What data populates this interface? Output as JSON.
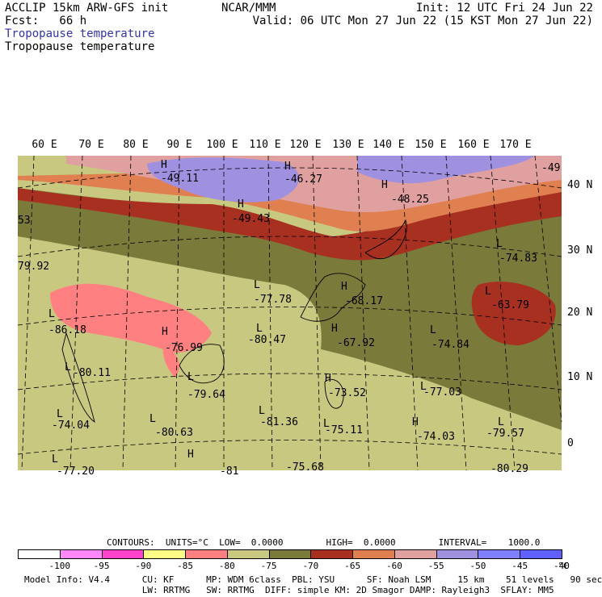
{
  "header": {
    "model": "ACCLIP 15km ARW-GFS init",
    "org": "NCAR/MMM",
    "init": "Init: 12 UTC Fri 24 Jun 22",
    "fcst": "Fcst:   66 h",
    "valid": "Valid: 06 UTC Mon 27 Jun 22 (15 KST Mon 27 Jun 22)",
    "field1": "Tropopause temperature",
    "field2": "Tropopause temperature"
  },
  "lon_labels": [
    "60 E",
    "70 E",
    "80 E",
    "90 E",
    "100 E",
    "110 E",
    "120 E",
    "130 E",
    "140 E",
    "150 E",
    "160 E",
    "170 E"
  ],
  "lat_labels": [
    "40 N",
    "30 N",
    "20 N",
    "10 N",
    "0"
  ],
  "map_labels": [
    {
      "t": "H",
      "k": "h"
    },
    {
      "t": "-49.11",
      "k": "v"
    },
    {
      "t": "H",
      "k": "h"
    },
    {
      "t": "-46.27",
      "k": "v"
    },
    {
      "t": "H",
      "k": "h"
    },
    {
      "t": "-49.43",
      "k": "v"
    },
    {
      "t": "H",
      "k": "h"
    },
    {
      "t": "-48.25",
      "k": "v"
    },
    {
      "t": "-49",
      "k": "v"
    },
    {
      "t": "53",
      "k": "v"
    },
    {
      "t": "79.92",
      "k": "v"
    },
    {
      "t": "L",
      "k": "l"
    },
    {
      "t": "-77.78",
      "k": "v"
    },
    {
      "t": "H",
      "k": "h"
    },
    {
      "t": "-68.17",
      "k": "v"
    },
    {
      "t": "L",
      "k": "l"
    },
    {
      "t": "-74.83",
      "k": "v"
    },
    {
      "t": "L",
      "k": "l"
    },
    {
      "t": "-63.79",
      "k": "v"
    },
    {
      "t": "L",
      "k": "l"
    },
    {
      "t": "-86.18",
      "k": "v"
    },
    {
      "t": "H",
      "k": "h"
    },
    {
      "t": "-76.99",
      "k": "v"
    },
    {
      "t": "L",
      "k": "l"
    },
    {
      "t": "-80.47",
      "k": "v"
    },
    {
      "t": "H",
      "k": "h"
    },
    {
      "t": "-67.92",
      "k": "v"
    },
    {
      "t": "L",
      "k": "l"
    },
    {
      "t": "-74.84",
      "k": "v"
    },
    {
      "t": "L",
      "k": "l"
    },
    {
      "t": "-80.11",
      "k": "v"
    },
    {
      "t": "L",
      "k": "l"
    },
    {
      "t": "-79.64",
      "k": "v"
    },
    {
      "t": "H",
      "k": "h"
    },
    {
      "t": "-73.52",
      "k": "v"
    },
    {
      "t": "L",
      "k": "l"
    },
    {
      "t": "-77.03",
      "k": "v"
    },
    {
      "t": "L",
      "k": "l"
    },
    {
      "t": "-74.04",
      "k": "v"
    },
    {
      "t": "L",
      "k": "l"
    },
    {
      "t": "-80.63",
      "k": "v"
    },
    {
      "t": "L",
      "k": "l"
    },
    {
      "t": "-81.36",
      "k": "v"
    },
    {
      "t": "L",
      "k": "l"
    },
    {
      "t": "-75.11",
      "k": "v"
    },
    {
      "t": "H",
      "k": "h"
    },
    {
      "t": "-74.03",
      "k": "v"
    },
    {
      "t": "L",
      "k": "l"
    },
    {
      "t": "-79.57",
      "k": "v"
    },
    {
      "t": "L",
      "k": "l"
    },
    {
      "t": "-77.20",
      "k": "v"
    },
    {
      "t": "H",
      "k": "h"
    },
    {
      "t": "-75.68",
      "k": "v"
    },
    {
      "t": "-80.29",
      "k": "v"
    },
    {
      "t": "-81",
      "k": "v"
    }
  ],
  "contours": "CONTOURS:  UNITS=°C  LOW=  0.0000        HIGH=  0.0000        INTERVAL=    1000.0",
  "colorbar": {
    "colors": [
      "#ffffff",
      "#ff88ff",
      "#ff44cc",
      "#ffff88",
      "#ff8080",
      "#c8c880",
      "#7a7a3a",
      "#a83020",
      "#e08050",
      "#e0a0a0",
      "#a090e0",
      "#8080ff",
      "#6060ff"
    ],
    "labels": [
      "-100",
      "-95",
      "-90",
      "-85",
      "-80",
      "-75",
      "-70",
      "-65",
      "-60",
      "-55",
      "-50",
      "-45",
      "-40"
    ],
    "unit": "°C"
  },
  "footer": {
    "line1": "Model Info: V4.4      CU: KF      MP: WDM 6class  PBL: YSU      SF: Noah LSM     15 km    51 levels   90 sec",
    "line2": "                      LW: RRTMG   SW: RRTMG  DIFF: simple KM: 2D Smagor DAMP: Rayleigh3  SFLAY: MM5"
  }
}
